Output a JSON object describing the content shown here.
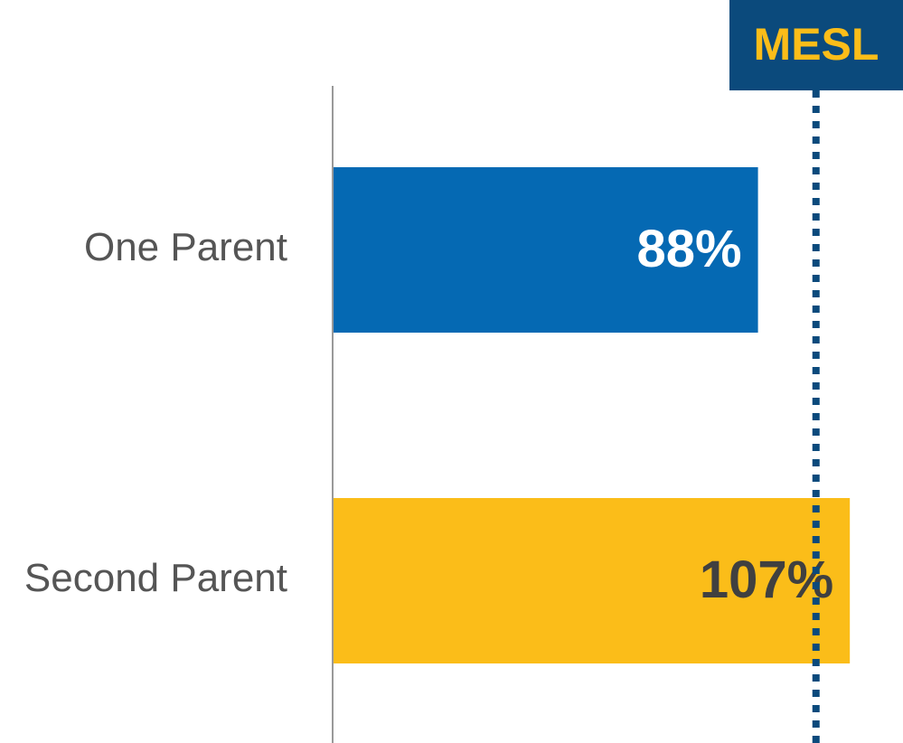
{
  "chart_data": {
    "type": "bar",
    "orientation": "horizontal",
    "categories": [
      "One Parent",
      "Second Parent"
    ],
    "values": [
      88,
      107
    ],
    "value_labels": [
      "88%",
      "107%"
    ],
    "colors": [
      "#0569b3",
      "#fbbd19"
    ],
    "label_colors": [
      "#ffffff",
      "#404040"
    ],
    "xlim": [
      0,
      118
    ],
    "reference_line": {
      "value": 100,
      "label": "MESL",
      "color": "#0b4a7c",
      "label_color": "#fbbd19"
    }
  }
}
